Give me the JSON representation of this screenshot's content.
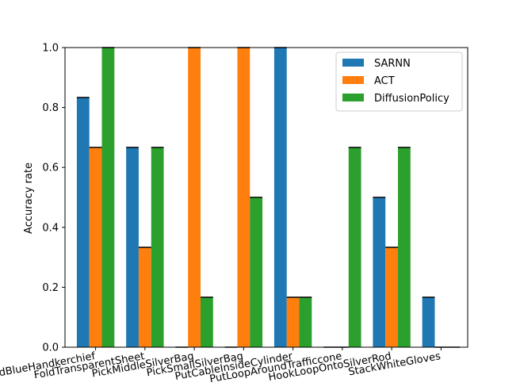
{
  "chart_data": {
    "type": "bar",
    "title": "",
    "xlabel": "",
    "ylabel": "Accuracy rate",
    "ylim": [
      0,
      1.0
    ],
    "yticks": [
      "0.0",
      "0.2",
      "0.4",
      "0.6",
      "0.8",
      "1.0"
    ],
    "categories": [
      "FoldBlueHandkerchief",
      "FoldTransparentSheet",
      "PickMiddleSilverBag",
      "PickSmallSilverBag",
      "PutCableInsideCylinder",
      "PutLoopAroundTrafficcone",
      "HookLoopOntoSilverRod",
      "StackWhiteGloves"
    ],
    "series": [
      {
        "name": "SARNN",
        "color": "#1f77b4",
        "values": [
          0.8333,
          0.6667,
          0.0,
          0.0,
          1.0,
          0.0,
          0.5,
          0.1667
        ]
      },
      {
        "name": "ACT",
        "color": "#ff7f0e",
        "values": [
          0.6667,
          0.3333,
          1.0,
          1.0,
          0.1667,
          0.0,
          0.3333,
          0.0
        ]
      },
      {
        "name": "DiffusionPolicy",
        "color": "#2ca02c",
        "values": [
          1.0,
          0.6667,
          0.1667,
          0.5,
          0.1667,
          0.6667,
          0.6667,
          0.0
        ]
      }
    ],
    "grid": false,
    "legend": "upper right"
  }
}
